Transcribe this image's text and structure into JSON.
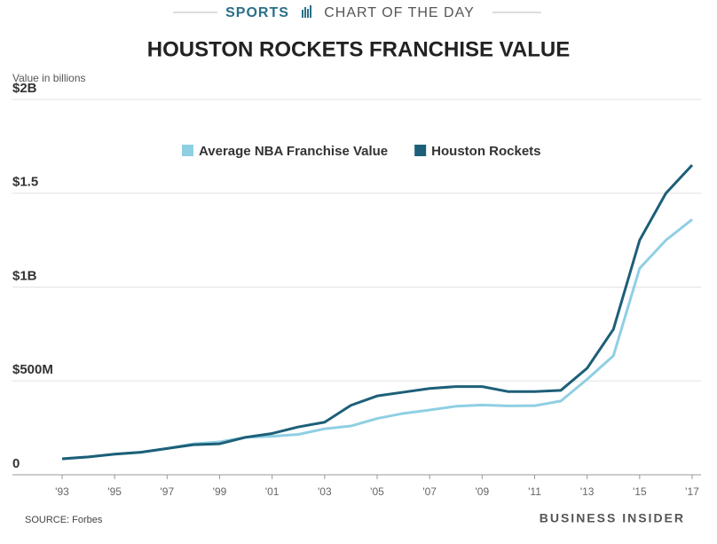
{
  "chart_data": {
    "type": "line",
    "kicker": "SPORTS",
    "kicker_rest": "CHART OF THE DAY",
    "title": "HOUSTON ROCKETS FRANCHISE VALUE",
    "ylabel": "Value in billions",
    "source": "SOURCE: Forbes",
    "brand": "BUSINESS INSIDER",
    "x": [
      1993,
      1994,
      1995,
      1996,
      1997,
      1998,
      1999,
      2000,
      2001,
      2002,
      2003,
      2004,
      2005,
      2006,
      2007,
      2008,
      2009,
      2010,
      2011,
      2012,
      2013,
      2014,
      2015,
      2016,
      2017
    ],
    "xlim": [
      1993,
      2017
    ],
    "xticks": [
      {
        "value": 1993,
        "label": "'93"
      },
      {
        "value": 1995,
        "label": "'95"
      },
      {
        "value": 1997,
        "label": "'97"
      },
      {
        "value": 1999,
        "label": "'99"
      },
      {
        "value": 2001,
        "label": "'01"
      },
      {
        "value": 2003,
        "label": "'03"
      },
      {
        "value": 2005,
        "label": "'05"
      },
      {
        "value": 2007,
        "label": "'07"
      },
      {
        "value": 2009,
        "label": "'09"
      },
      {
        "value": 2011,
        "label": "'11"
      },
      {
        "value": 2013,
        "label": "'13"
      },
      {
        "value": 2015,
        "label": "'15"
      },
      {
        "value": 2017,
        "label": "'17"
      }
    ],
    "ylim": [
      0,
      2
    ],
    "yticks": [
      0,
      {
        "value": 0.5,
        "label": "$500M"
      },
      {
        "value": 1,
        "label": "$1B"
      },
      {
        "value": 1.5,
        "label": "$1.5"
      },
      {
        "value": 2,
        "label": "$2B"
      }
    ],
    "grid": true,
    "legend": "top",
    "series": [
      {
        "name": "Average NBA Franchise Value",
        "color": "#8fcfe3",
        "values": [
          0.085,
          0.095,
          0.11,
          0.12,
          0.14,
          0.165,
          0.175,
          0.2,
          0.205,
          0.215,
          0.245,
          0.26,
          0.3,
          0.327,
          0.345,
          0.365,
          0.372,
          0.367,
          0.368,
          0.393,
          0.509,
          0.634,
          1.1,
          1.25,
          1.36
        ]
      },
      {
        "name": "Houston Rockets",
        "color": "#1d5f78",
        "values": [
          0.085,
          0.095,
          0.11,
          0.12,
          0.14,
          0.16,
          0.165,
          0.2,
          0.22,
          0.255,
          0.28,
          0.37,
          0.42,
          0.44,
          0.46,
          0.47,
          0.47,
          0.443,
          0.443,
          0.45,
          0.568,
          0.775,
          1.25,
          1.5,
          1.65
        ]
      }
    ]
  }
}
